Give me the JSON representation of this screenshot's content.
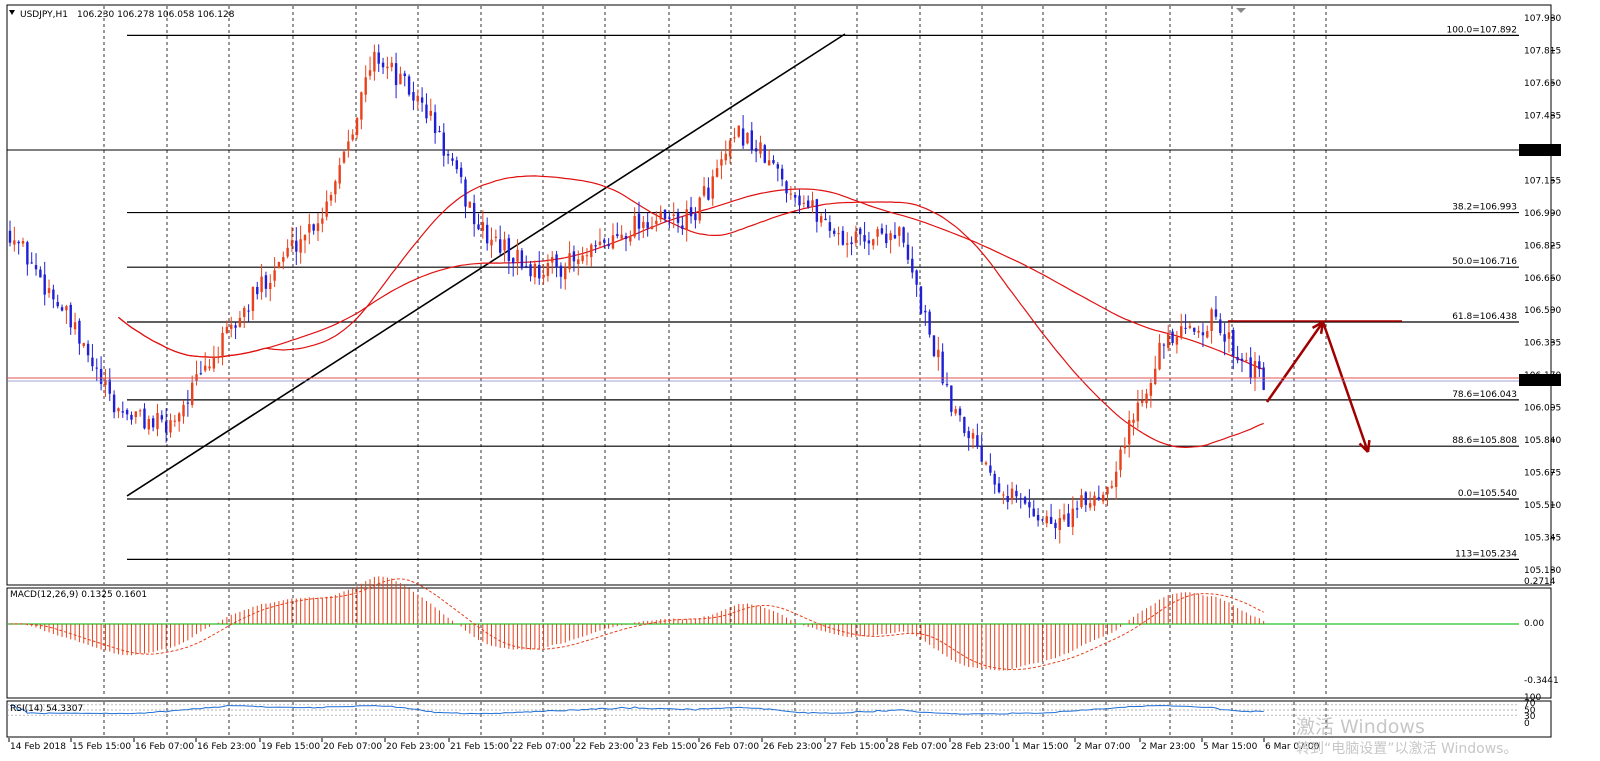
{
  "header": {
    "symbol": "USDJPY,H1",
    "ohlc": "106.230 106.278 106.058 106.128",
    "dropdown_icon": "triangle-down-icon"
  },
  "colors": {
    "bull": "#e8411b",
    "bear": "#1f1fd6",
    "ma": "#e01010",
    "fib": "#000000",
    "arrow": "#a00000",
    "zero_line": "#21c42b",
    "rsi": "#1e6fd6",
    "price_tag": "#000000"
  },
  "price_axis": {
    "labels": [
      "107.980",
      "107.815",
      "107.650",
      "107.485",
      "107.307",
      "107.155",
      "106.990",
      "106.825",
      "106.660",
      "106.500",
      "106.335",
      "106.170",
      "106.128",
      "106.005",
      "105.840",
      "105.675",
      "105.510",
      "105.345",
      "105.180"
    ],
    "current_price": "106.128",
    "hline_price": "107.307"
  },
  "time_axis": {
    "labels": [
      "14 Feb 2018",
      "15 Feb 15:00",
      "16 Feb 07:00",
      "16 Feb 23:00",
      "19 Feb 15:00",
      "20 Feb 07:00",
      "20 Feb 23:00",
      "21 Feb 15:00",
      "22 Feb 07:00",
      "22 Feb 23:00",
      "23 Feb 15:00",
      "26 Feb 07:00",
      "26 Feb 23:00",
      "27 Feb 15:00",
      "28 Feb 07:00",
      "28 Feb 23:00",
      "1 Mar 15:00",
      "2 Mar 07:00",
      "2 Mar 23:00",
      "5 Mar 15:00",
      "6 Mar 07:00"
    ]
  },
  "fibonacci": [
    {
      "label": "100.0=107.892"
    },
    {
      "label": "38.2=106.993"
    },
    {
      "label": "50.0=106.716"
    },
    {
      "label": "61.8=106.438"
    },
    {
      "label": "78.6=106.043"
    },
    {
      "label": "88.6=105.808"
    },
    {
      "label": "0.0=105.540"
    },
    {
      "label": "113=105.234"
    }
  ],
  "macd": {
    "title": "MACD(12,26,9) 0.1325 0.1601",
    "labels": [
      "0.2714",
      "0.00",
      "-0.3441"
    ]
  },
  "rsi": {
    "title": "RSI(14) 54.3307",
    "labels": [
      "100",
      "70",
      "50",
      "30",
      "0"
    ]
  },
  "watermark": {
    "line1": "激活 Windows",
    "line2": "转到“电脑设置”以激活 Windows。"
  },
  "chart_data": {
    "type": "candlestick",
    "title": "USDJPY,H1",
    "ylim": [
      105.18,
      107.98
    ],
    "x": [
      "14 Feb 2018",
      "15 Feb 15:00",
      "16 Feb 07:00",
      "16 Feb 23:00",
      "19 Feb 15:00",
      "20 Feb 07:00",
      "20 Feb 23:00",
      "21 Feb 15:00",
      "22 Feb 07:00",
      "22 Feb 23:00",
      "23 Feb 15:00",
      "26 Feb 07:00",
      "26 Feb 23:00",
      "27 Feb 15:00",
      "28 Feb 07:00",
      "28 Feb 23:00",
      "1 Mar 15:00",
      "2 Mar 07:00",
      "2 Mar 23:00",
      "5 Mar 15:00",
      "6 Mar 07:00"
    ],
    "close_path": [
      106.9,
      106.5,
      106.0,
      105.9,
      106.3,
      106.7,
      107.0,
      107.8,
      107.5,
      106.9,
      106.7,
      106.75,
      106.95,
      106.95,
      107.4,
      107.1,
      106.85,
      106.9,
      106.05,
      105.6,
      105.4,
      105.6,
      106.3,
      106.45,
      106.128
    ],
    "last": {
      "open": 106.23,
      "high": 106.278,
      "low": 106.058,
      "close": 106.128
    },
    "fib_levels": [
      {
        "ratio": "100.0",
        "price": 107.892
      },
      {
        "ratio": "38.2",
        "price": 106.993
      },
      {
        "ratio": "50.0",
        "price": 106.716
      },
      {
        "ratio": "61.8",
        "price": 106.438
      },
      {
        "ratio": "78.6",
        "price": 106.043
      },
      {
        "ratio": "88.6",
        "price": 105.808
      },
      {
        "ratio": "0.0",
        "price": 105.54
      },
      {
        "ratio": "113",
        "price": 105.234
      }
    ],
    "indicators": {
      "macd": {
        "params": "12,26,9",
        "main": 0.1325,
        "signal": 0.1601,
        "ylim": [
          -0.3441,
          0.2714
        ]
      },
      "rsi": {
        "period": 14,
        "value": 54.3307,
        "levels": [
          100,
          70,
          50,
          30,
          0
        ]
      }
    }
  }
}
